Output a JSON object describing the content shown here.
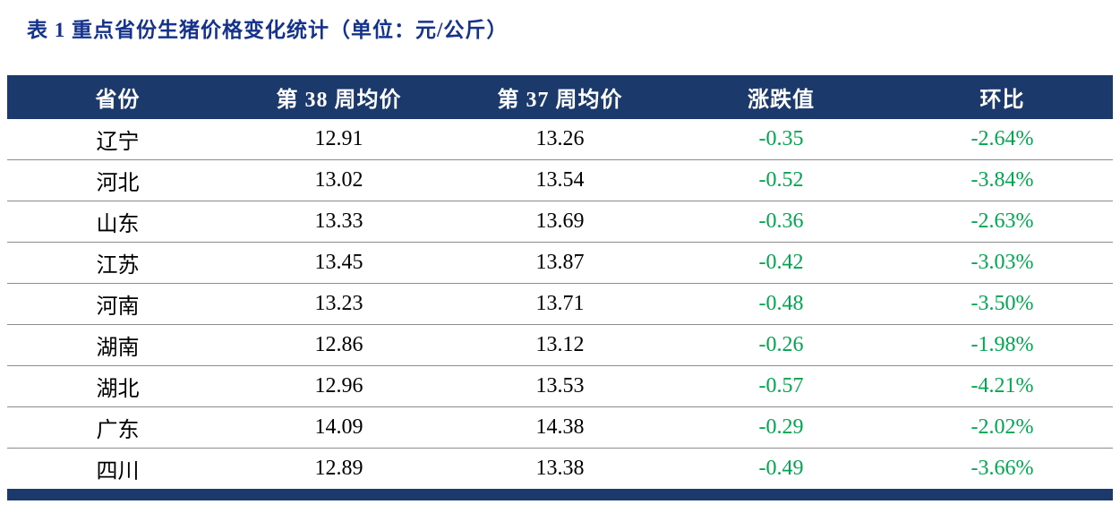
{
  "title": "表 1 重点省份生猪价格变化统计（单位：元/公斤）",
  "colors": {
    "header_bg": "#1B3A6B",
    "title": "#15338C",
    "negative": "#00A651",
    "row_line": "#8C8C8C"
  },
  "table": {
    "columns": [
      "省份",
      "第 38 周均价",
      "第 37 周均价",
      "涨跌值",
      "环比"
    ],
    "rows": [
      [
        "辽宁",
        "12.91",
        "13.26",
        "-0.35",
        "-2.64%"
      ],
      [
        "河北",
        "13.02",
        "13.54",
        "-0.52",
        "-3.84%"
      ],
      [
        "山东",
        "13.33",
        "13.69",
        "-0.36",
        "-2.63%"
      ],
      [
        "江苏",
        "13.45",
        "13.87",
        "-0.42",
        "-3.03%"
      ],
      [
        "河南",
        "13.23",
        "13.71",
        "-0.48",
        "-3.50%"
      ],
      [
        "湖南",
        "12.86",
        "13.12",
        "-0.26",
        "-1.98%"
      ],
      [
        "湖北",
        "12.96",
        "13.53",
        "-0.57",
        "-4.21%"
      ],
      [
        "广东",
        "14.09",
        "14.38",
        "-0.29",
        "-2.02%"
      ],
      [
        "四川",
        "12.89",
        "13.38",
        "-0.49",
        "-3.66%"
      ]
    ]
  }
}
